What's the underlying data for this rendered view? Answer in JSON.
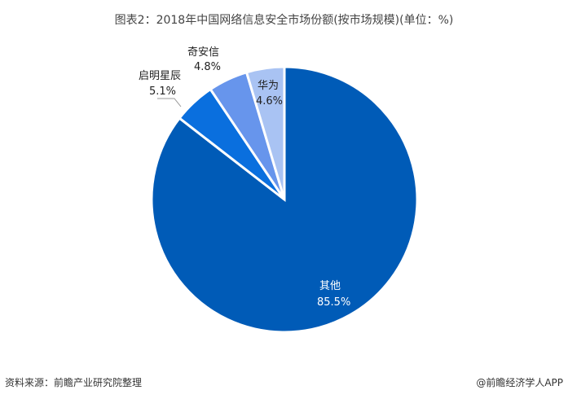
{
  "chart_data": {
    "type": "pie",
    "title": "图表2：2018年中国网络信息安全市场份额(按市场规模)(单位：%)",
    "start": "12 o'clock, clockwise",
    "slices": [
      {
        "label": "其他",
        "value": 85.5,
        "display": "85.5%",
        "color": "#005bb7"
      },
      {
        "label": "启明星辰",
        "value": 5.1,
        "display": "5.1%",
        "color": "#0a6fde"
      },
      {
        "label": "奇安信",
        "value": 4.8,
        "display": "4.8%",
        "color": "#6795ec"
      },
      {
        "label": "华为",
        "value": 4.6,
        "display": "4.6%",
        "color": "#a9c3f3"
      }
    ]
  },
  "footer": {
    "source": "资料来源：前瞻产业研究院整理",
    "credit": "@前瞻经济学人APP"
  }
}
